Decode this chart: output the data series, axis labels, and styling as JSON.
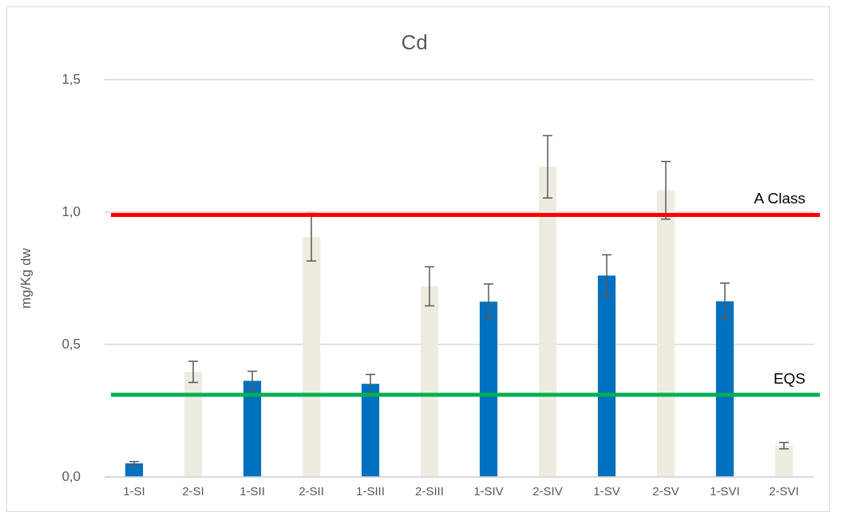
{
  "chart_data": {
    "type": "bar",
    "title": "Cd",
    "ylabel": "mg/Kg dw",
    "categories": [
      "1-SI",
      "2-SI",
      "1-SII",
      "2-SII",
      "1-SIII",
      "2-SIII",
      "1-SIV",
      "2-SIV",
      "1-SV",
      "2-SV",
      "1-SVI",
      "2-SVI"
    ],
    "values": [
      0.051,
      0.397,
      0.363,
      0.906,
      0.352,
      0.72,
      0.662,
      1.172,
      0.761,
      1.083,
      0.664,
      0.118
    ],
    "errors": [
      0.007,
      0.04,
      0.036,
      0.09,
      0.035,
      0.074,
      0.067,
      0.118,
      0.078,
      0.109,
      0.068,
      0.012
    ],
    "colors": [
      "#0070c0",
      "#eeece1",
      "#0070c0",
      "#eeece1",
      "#0070c0",
      "#eeece1",
      "#0070c0",
      "#eeece1",
      "#0070c0",
      "#eeece1",
      "#0070c0",
      "#eeece1"
    ],
    "ylim": [
      0,
      1.5
    ],
    "yticks": [
      {
        "value": 0,
        "label": "0,0"
      },
      {
        "value": 0.5,
        "label": "0,5"
      },
      {
        "value": 1,
        "label": "1,0"
      },
      {
        "value": 1.5,
        "label": "1,5"
      }
    ],
    "grid": "y",
    "legend": false,
    "ref_lines": [
      {
        "axis": "y",
        "value": 0.99,
        "label": "A Class",
        "color": "#ff0000"
      },
      {
        "axis": "y",
        "value": 0.31,
        "label": "EQS",
        "color": "#00b050"
      }
    ]
  }
}
